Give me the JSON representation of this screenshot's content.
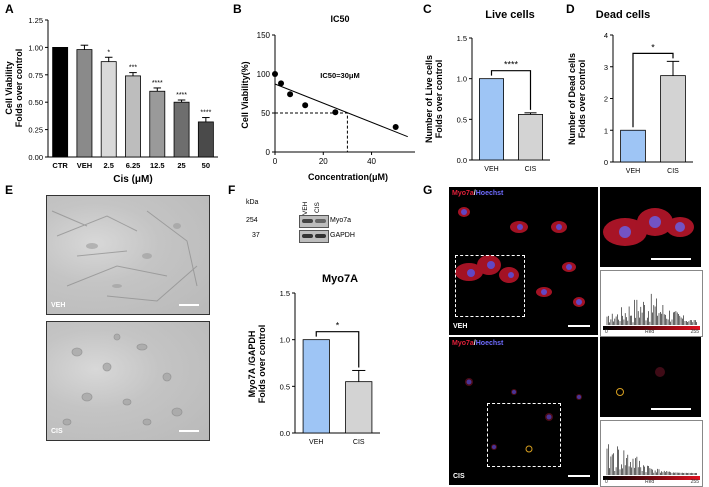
{
  "panels": {
    "A": "A",
    "B": "B",
    "C": "C",
    "D": "D",
    "E": "E",
    "F": "F",
    "G": "G"
  },
  "chart_data": [
    {
      "panel": "A",
      "type": "bar",
      "categories": [
        "CTR",
        "VEH",
        "2.5",
        "6.25",
        "12.5",
        "25",
        "50"
      ],
      "values": [
        1.0,
        0.98,
        0.87,
        0.74,
        0.6,
        0.5,
        0.32
      ],
      "errors": [
        0,
        0.04,
        0.04,
        0.03,
        0.03,
        0.02,
        0.04
      ],
      "significance": [
        "",
        "",
        "*",
        "***",
        "****",
        "****",
        "****"
      ],
      "colors": [
        "#000000",
        "#8a8a8a",
        "#d9d9d9",
        "#bdbdbd",
        "#9a9a9a",
        "#6e6e6e",
        "#4a4a4a"
      ],
      "ylabel": "Cell Viability\nFolds over control",
      "xlabel": "Cis (μM)",
      "ylim": [
        0,
        1.25
      ],
      "yticks": [
        "0.00",
        "0.25",
        "0.50",
        "0.75",
        "1.00",
        "1.25"
      ]
    },
    {
      "panel": "B",
      "type": "scatter",
      "title": "IC50",
      "annotation": "IC50=30μM",
      "x": [
        0,
        2.5,
        6.25,
        12.5,
        25,
        50
      ],
      "y": [
        100,
        88,
        74,
        60,
        51,
        32
      ],
      "ylabel": "Cell Viability(%)",
      "xlabel": "Concentration(μM)",
      "xlim": [
        0,
        58
      ],
      "ylim": [
        0,
        150
      ],
      "xticks": [
        "0",
        "20",
        "40"
      ],
      "yticks": [
        "0",
        "50",
        "100",
        "150"
      ],
      "ic50_x": 30,
      "ic50_y": 50
    },
    {
      "panel": "C",
      "type": "bar",
      "title": "Live cells",
      "categories": [
        "VEH",
        "CIS"
      ],
      "values": [
        1.0,
        0.56
      ],
      "errors": [
        0,
        0.02
      ],
      "colors": [
        "#9ec5f5",
        "#d3d3d3"
      ],
      "significance": "****",
      "ylabel": "Number of Live cells\nFolds over control",
      "ylim": [
        0,
        1.5
      ],
      "yticks": [
        "0.0",
        "0.5",
        "1.0",
        "1.5"
      ]
    },
    {
      "panel": "D",
      "type": "bar",
      "title": "Dead cells",
      "categories": [
        "VEH",
        "CIS"
      ],
      "values": [
        1.0,
        2.72
      ],
      "errors": [
        0,
        0.45
      ],
      "colors": [
        "#9ec5f5",
        "#d3d3d3"
      ],
      "significance": "*",
      "ylabel": "Number of Dead cells\nFolds over control",
      "ylim": [
        0,
        4
      ],
      "yticks": [
        "0",
        "1",
        "2",
        "3",
        "4"
      ]
    },
    {
      "panel": "F",
      "type": "bar",
      "title": "Myo7A",
      "categories": [
        "VEH",
        "CIS"
      ],
      "values": [
        1.0,
        0.55
      ],
      "errors": [
        0,
        0.12
      ],
      "colors": [
        "#9ec5f5",
        "#d3d3d3"
      ],
      "significance": "*",
      "ylabel": "Myo7A /GAPDH\nFolds over control",
      "ylim": [
        0,
        1.5
      ],
      "yticks": [
        "0.0",
        "0.5",
        "1.0",
        "1.5"
      ]
    }
  ],
  "blot": {
    "kda_label": "kDa",
    "lanes": [
      "VEH",
      "CIS"
    ],
    "rows": [
      {
        "kda": "254",
        "protein": "Myo7a"
      },
      {
        "kda": "37",
        "protein": "GAPDH"
      }
    ]
  },
  "panel_e": {
    "top_label": "VEH",
    "bottom_label": "CIS"
  },
  "panel_g": {
    "stain_red": "Myo7a",
    "stain_sep": "/",
    "stain_blue": "Hoechst",
    "top_label": "VEH",
    "bottom_label": "CIS",
    "hist_ticks": [
      "0",
      "Red",
      "255"
    ]
  }
}
